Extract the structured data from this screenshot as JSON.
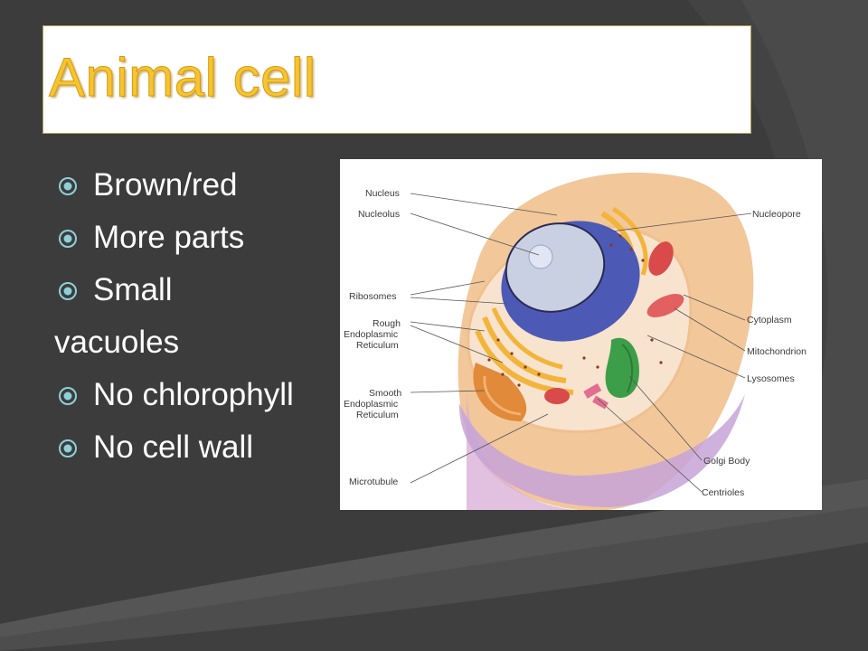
{
  "slide": {
    "title": "Animal cell",
    "bullets": [
      {
        "text": "Brown/red",
        "has_bullet": true
      },
      {
        "text": "More parts",
        "has_bullet": true
      },
      {
        "text": "Small",
        "has_bullet": true
      },
      {
        "text": "vacuoles",
        "has_bullet": false
      },
      {
        "text": "No chlorophyll",
        "has_bullet": true
      },
      {
        "text": "No cell wall",
        "has_bullet": true
      }
    ],
    "bullet_icon": "circled-dot-icon"
  },
  "diagram": {
    "labels_left": [
      "Nucleus",
      "Nucleolus",
      "Ribosomes",
      "Rough",
      "Endoplasmic",
      "Reticulum",
      "Smooth",
      "Endoplasmic",
      "Reticulum",
      "Microtubule"
    ],
    "labels_right": [
      "Nucleopore",
      "Cytoplasm",
      "Mitochondrion",
      "Lysosomes",
      "Golgi Body",
      "Centrioles"
    ]
  },
  "colors": {
    "background": "#3b3b3b",
    "title_fill": "#f5c431",
    "bullet_icon": "#8fd0d8",
    "text": "#ffffff"
  }
}
